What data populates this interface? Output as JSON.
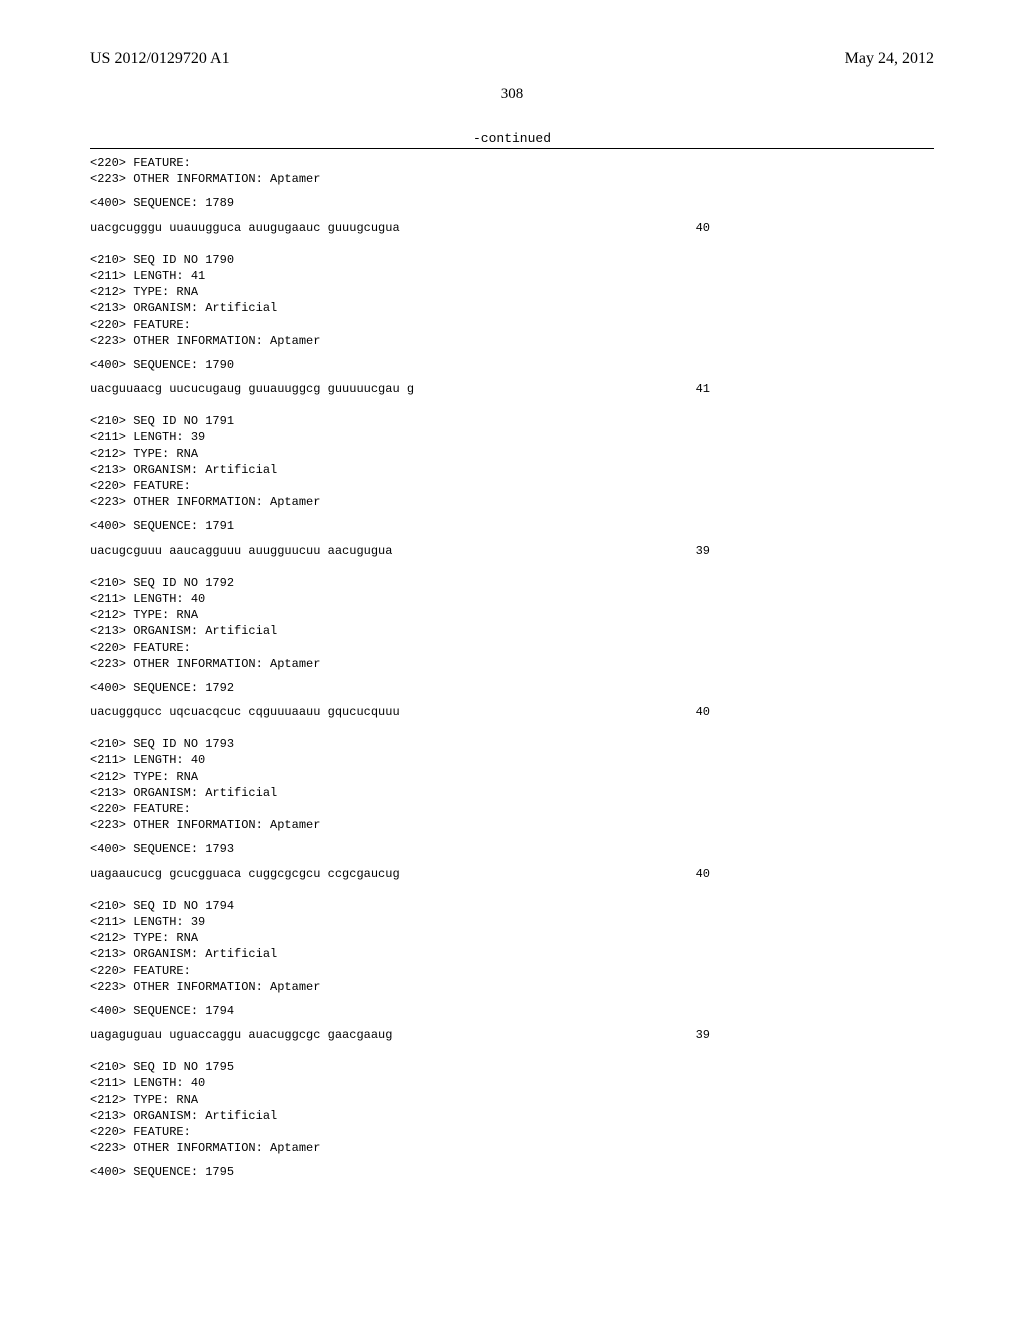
{
  "header": {
    "publication_number": "US 2012/0129720 A1",
    "date": "May 24, 2012"
  },
  "page_number": "308",
  "continued_label": "-continued",
  "intro_block": {
    "lines": [
      "<220> FEATURE:",
      "<223> OTHER INFORMATION: Aptamer"
    ],
    "seq_label": "<400> SEQUENCE: 1789",
    "sequence": "uacgcugggu uuauugguca auugugaauc guuugcugua",
    "length": "40"
  },
  "entries": [
    {
      "lines": [
        "<210> SEQ ID NO 1790",
        "<211> LENGTH: 41",
        "<212> TYPE: RNA",
        "<213> ORGANISM: Artificial",
        "<220> FEATURE:",
        "<223> OTHER INFORMATION: Aptamer"
      ],
      "seq_label": "<400> SEQUENCE: 1790",
      "sequence": "uacguuaacg uucucugaug guuauuggcg guuuuucgau g",
      "length": "41"
    },
    {
      "lines": [
        "<210> SEQ ID NO 1791",
        "<211> LENGTH: 39",
        "<212> TYPE: RNA",
        "<213> ORGANISM: Artificial",
        "<220> FEATURE:",
        "<223> OTHER INFORMATION: Aptamer"
      ],
      "seq_label": "<400> SEQUENCE: 1791",
      "sequence": "uacugcguuu aaucagguuu auugguucuu aacugugua",
      "length": "39"
    },
    {
      "lines": [
        "<210> SEQ ID NO 1792",
        "<211> LENGTH: 40",
        "<212> TYPE: RNA",
        "<213> ORGANISM: Artificial",
        "<220> FEATURE:",
        "<223> OTHER INFORMATION: Aptamer"
      ],
      "seq_label": "<400> SEQUENCE: 1792",
      "sequence": "uacuggqucc uqcuacqcuc cqguuuaauu gqucucquuu",
      "length": "40"
    },
    {
      "lines": [
        "<210> SEQ ID NO 1793",
        "<211> LENGTH: 40",
        "<212> TYPE: RNA",
        "<213> ORGANISM: Artificial",
        "<220> FEATURE:",
        "<223> OTHER INFORMATION: Aptamer"
      ],
      "seq_label": "<400> SEQUENCE: 1793",
      "sequence": "uagaaucucg gcucgguaca cuggcgcgcu ccgcgaucug",
      "length": "40"
    },
    {
      "lines": [
        "<210> SEQ ID NO 1794",
        "<211> LENGTH: 39",
        "<212> TYPE: RNA",
        "<213> ORGANISM: Artificial",
        "<220> FEATURE:",
        "<223> OTHER INFORMATION: Aptamer"
      ],
      "seq_label": "<400> SEQUENCE: 1794",
      "sequence": "uagaguguau uguaccaggu auacuggcgc gaacgaaug",
      "length": "39"
    },
    {
      "lines": [
        "<210> SEQ ID NO 1795",
        "<211> LENGTH: 40",
        "<212> TYPE: RNA",
        "<213> ORGANISM: Artificial",
        "<220> FEATURE:",
        "<223> OTHER INFORMATION: Aptamer"
      ],
      "seq_label": "<400> SEQUENCE: 1795",
      "sequence": "",
      "length": ""
    }
  ]
}
